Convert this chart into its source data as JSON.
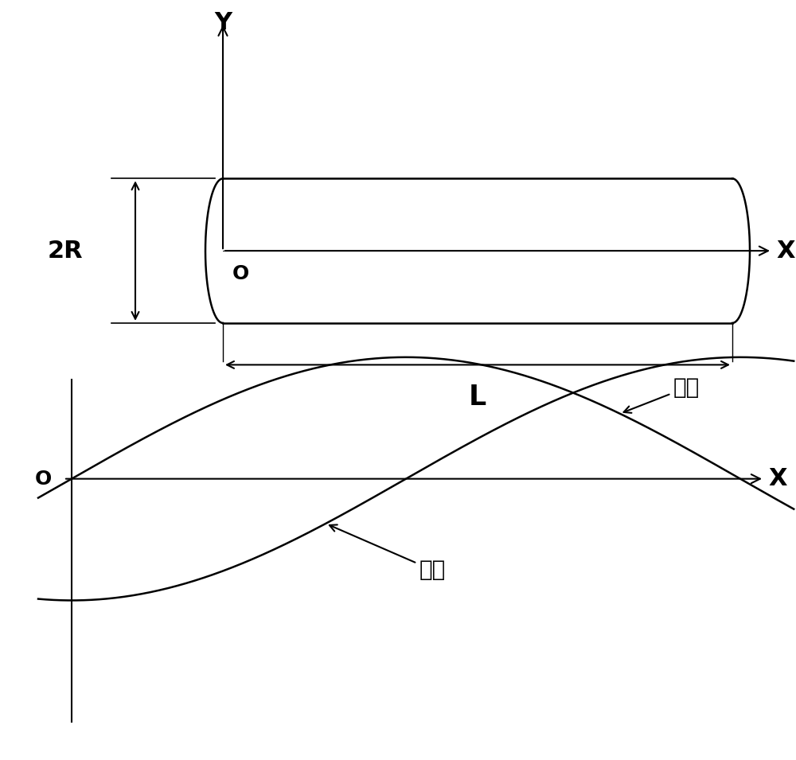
{
  "background_color": "#ffffff",
  "fig_width": 10.0,
  "fig_height": 9.55,
  "label_2R": "2R",
  "label_L": "L",
  "label_X_top": "X",
  "label_Y_top": "Y",
  "label_O_top": "O",
  "label_X_bottom": "X",
  "label_O_bottom": "O",
  "label_stress": "应力",
  "label_displacement": "位移",
  "fontsize_large": 22,
  "fontsize_medium": 20,
  "fontsize_O": 18,
  "line_color": "#000000",
  "lw_main": 1.8,
  "lw_thin": 1.0,
  "lw_axis": 1.5
}
